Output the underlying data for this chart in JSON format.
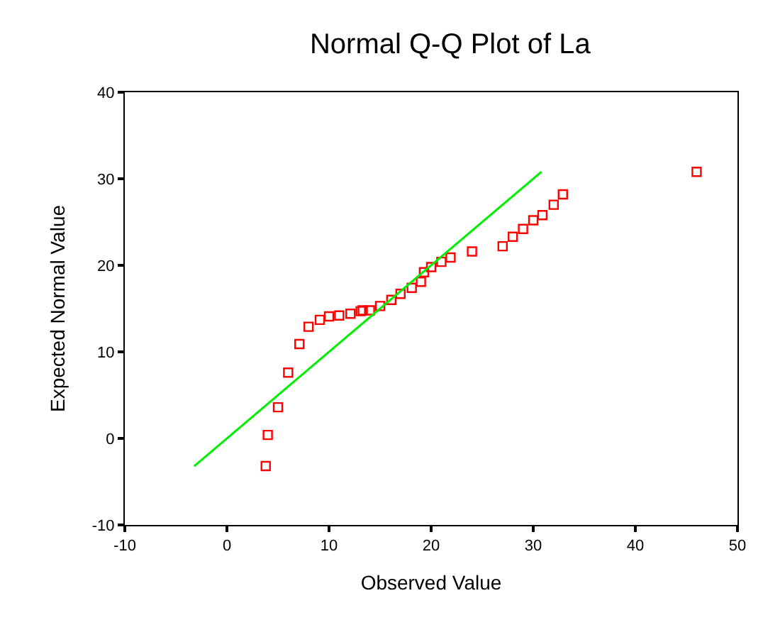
{
  "chart_data": {
    "type": "scatter",
    "title": "Normal Q-Q Plot of La",
    "xlabel": "Observed Value",
    "ylabel": "Expected Normal Value",
    "xlim": [
      -10,
      50
    ],
    "xticks": [
      -10,
      0,
      10,
      20,
      30,
      40,
      50
    ],
    "ylim": [
      -10,
      40
    ],
    "yticks": [
      -10,
      0,
      10,
      20,
      30,
      40
    ],
    "marker": "square",
    "series": [
      {
        "color": "#ff0000",
        "x": [
          3.8,
          4.0,
          5.0,
          6.0,
          7.1,
          8.0,
          9.1,
          10.0,
          11.0,
          12.1,
          13.1,
          13.3,
          14.0,
          15.0,
          16.1,
          17.0,
          18.1,
          19.0,
          19.3,
          20.0,
          21.0,
          21.9,
          24.0,
          27.0,
          28.0,
          29.0,
          30.0,
          30.9,
          32.0,
          32.9,
          46.0
        ],
        "values": [
          -3.2,
          0.4,
          3.6,
          7.6,
          10.9,
          12.9,
          13.7,
          14.1,
          14.2,
          14.4,
          14.7,
          14.8,
          14.8,
          15.3,
          16.0,
          16.7,
          17.4,
          18.1,
          19.2,
          19.8,
          20.4,
          20.9,
          21.6,
          22.2,
          23.3,
          24.2,
          25.2,
          25.8,
          27.0,
          28.2,
          30.8
        ]
      },
      {
        "type": "line",
        "marker": "none",
        "color": "#00ee00",
        "x": [
          -3.2,
          30.8
        ],
        "values": [
          -3.2,
          30.8
        ]
      }
    ]
  }
}
